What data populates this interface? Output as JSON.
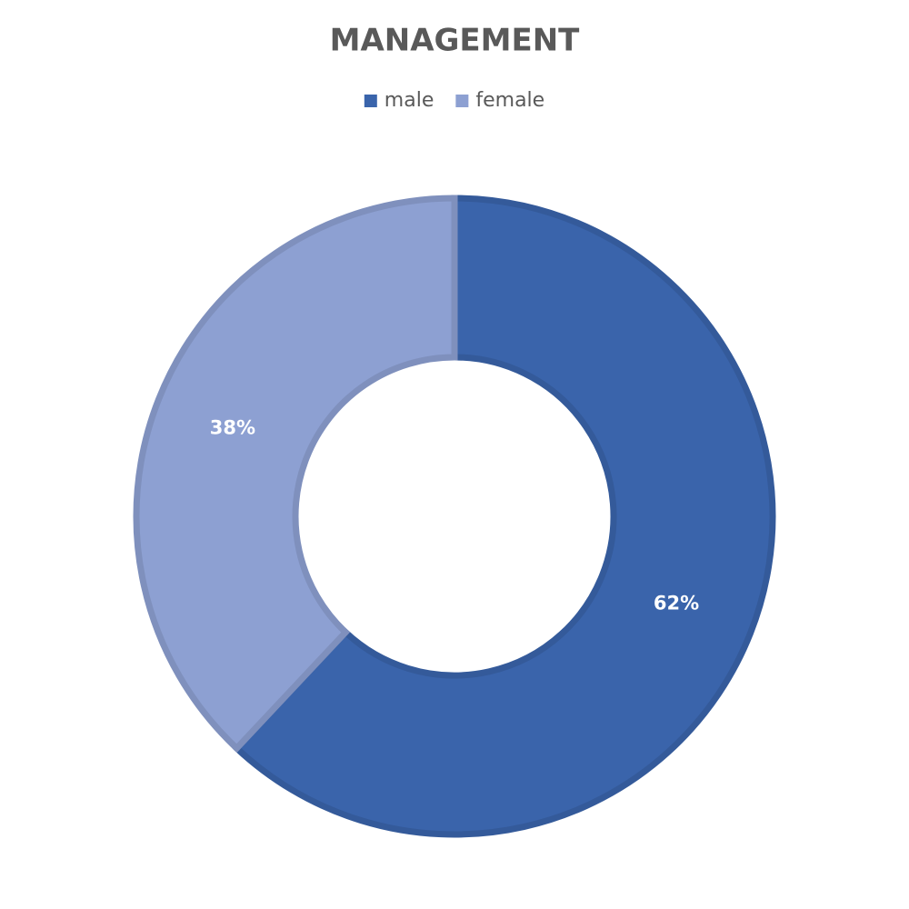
{
  "chart_data": {
    "type": "donut",
    "title": "MANAGEMENT",
    "categories": [
      "male",
      "female"
    ],
    "values": [
      62,
      38
    ],
    "value_labels": [
      "62%",
      "38%"
    ],
    "colors": [
      "#3a64ab",
      "#8da0d2"
    ],
    "legend": "top"
  }
}
